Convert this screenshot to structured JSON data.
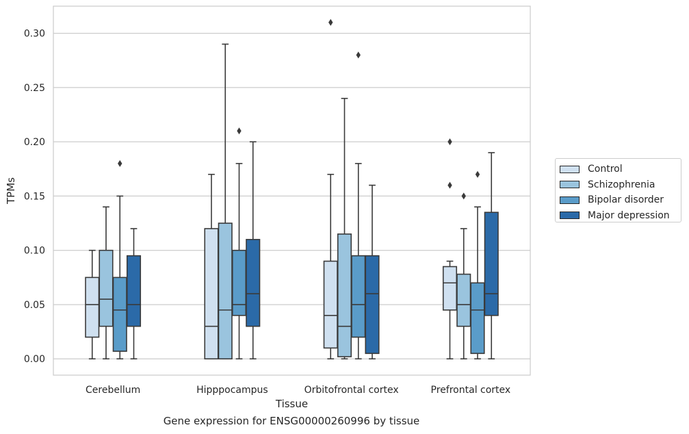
{
  "chart_data": {
    "type": "box",
    "xlabel": "Tissue",
    "ylabel": "TPMs",
    "caption": "Gene expression for ENSG00000260996 by tissue",
    "ylim": [
      -0.015,
      0.325
    ],
    "yticks": [
      "0.00",
      "0.05",
      "0.10",
      "0.15",
      "0.20",
      "0.25",
      "0.30"
    ],
    "ytick_values": [
      0,
      0.05,
      0.1,
      0.15,
      0.2,
      0.25,
      0.3
    ],
    "grid": "horizontal",
    "legend_position": "right",
    "categories": [
      "Cerebellum",
      "Hipppocampus",
      "Orbitofrontal cortex",
      "Prefrontal cortex"
    ],
    "series": [
      {
        "name": "Control",
        "color": "#cfe0f0",
        "boxes": [
          {
            "whisker_low": 0,
            "q1": 0.02,
            "median": 0.05,
            "q3": 0.075,
            "whisker_high": 0.1,
            "outliers": []
          },
          {
            "whisker_low": 0,
            "q1": 0,
            "median": 0.03,
            "q3": 0.12,
            "whisker_high": 0.17,
            "outliers": []
          },
          {
            "whisker_low": 0,
            "q1": 0.01,
            "median": 0.04,
            "q3": 0.09,
            "whisker_high": 0.17,
            "outliers": [
              0.31
            ]
          },
          {
            "whisker_low": 0,
            "q1": 0.045,
            "median": 0.07,
            "q3": 0.085,
            "whisker_high": 0.09,
            "outliers": [
              0.16,
              0.2
            ]
          }
        ]
      },
      {
        "name": "Schizophrenia",
        "color": "#9ac4de",
        "boxes": [
          {
            "whisker_low": 0,
            "q1": 0.03,
            "median": 0.055,
            "q3": 0.1,
            "whisker_high": 0.14,
            "outliers": []
          },
          {
            "whisker_low": 0,
            "q1": 0,
            "median": 0.045,
            "q3": 0.125,
            "whisker_high": 0.29,
            "outliers": []
          },
          {
            "whisker_low": 0,
            "q1": 0.002,
            "median": 0.03,
            "q3": 0.115,
            "whisker_high": 0.24,
            "outliers": []
          },
          {
            "whisker_low": 0,
            "q1": 0.03,
            "median": 0.05,
            "q3": 0.078,
            "whisker_high": 0.12,
            "outliers": [
              0.15
            ]
          }
        ]
      },
      {
        "name": "Bipolar disorder",
        "color": "#5a9cc9",
        "boxes": [
          {
            "whisker_low": 0,
            "q1": 0.007,
            "median": 0.045,
            "q3": 0.075,
            "whisker_high": 0.15,
            "outliers": [
              0.18
            ]
          },
          {
            "whisker_low": 0,
            "q1": 0.04,
            "median": 0.05,
            "q3": 0.1,
            "whisker_high": 0.18,
            "outliers": [
              0.21
            ]
          },
          {
            "whisker_low": 0,
            "q1": 0.02,
            "median": 0.05,
            "q3": 0.095,
            "whisker_high": 0.18,
            "outliers": [
              0.28
            ]
          },
          {
            "whisker_low": 0,
            "q1": 0.005,
            "median": 0.045,
            "q3": 0.07,
            "whisker_high": 0.14,
            "outliers": [
              0.17
            ]
          }
        ]
      },
      {
        "name": "Major depression",
        "color": "#2b6aa8",
        "boxes": [
          {
            "whisker_low": 0,
            "q1": 0.03,
            "median": 0.05,
            "q3": 0.095,
            "whisker_high": 0.12,
            "outliers": []
          },
          {
            "whisker_low": 0,
            "q1": 0.03,
            "median": 0.06,
            "q3": 0.11,
            "whisker_high": 0.2,
            "outliers": []
          },
          {
            "whisker_low": 0,
            "q1": 0.005,
            "median": 0.06,
            "q3": 0.095,
            "whisker_high": 0.16,
            "outliers": []
          },
          {
            "whisker_low": 0,
            "q1": 0.04,
            "median": 0.06,
            "q3": 0.135,
            "whisker_high": 0.19,
            "outliers": []
          }
        ]
      }
    ]
  }
}
